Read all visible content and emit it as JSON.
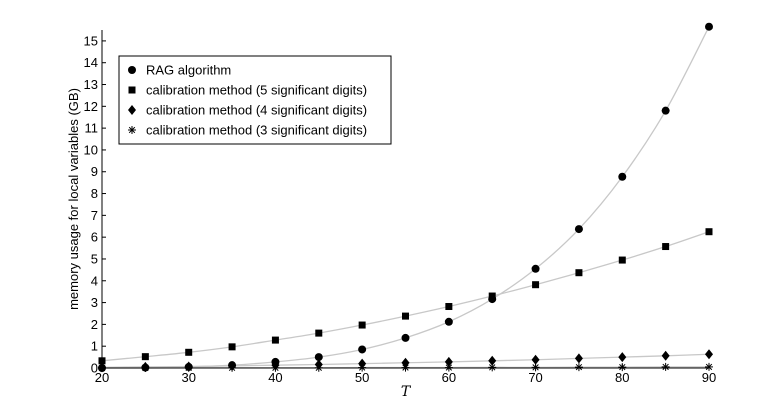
{
  "chart_data": {
    "type": "line",
    "xlabel": "T",
    "ylabel": "memory usage for local variables (GB)",
    "xlim": [
      20,
      90
    ],
    "ylim": [
      0,
      15.5
    ],
    "xticks": [
      "20",
      "30",
      "40",
      "50",
      "60",
      "70",
      "80",
      "90"
    ],
    "yticks": [
      "0",
      "1",
      "2",
      "3",
      "4",
      "5",
      "6",
      "7",
      "8",
      "9",
      "10",
      "11",
      "12",
      "13",
      "14",
      "15"
    ],
    "legend_position": "top-left",
    "grid": false,
    "x": [
      20,
      25,
      30,
      35,
      40,
      45,
      50,
      55,
      60,
      65,
      70,
      75,
      80,
      85,
      90
    ],
    "series": [
      {
        "name": "RAG algorithm",
        "marker": "circle",
        "values": [
          0.0,
          0.02,
          0.05,
          0.13,
          0.28,
          0.5,
          0.85,
          1.38,
          2.12,
          3.16,
          4.55,
          6.37,
          8.77,
          11.8,
          15.65
        ]
      },
      {
        "name": "calibration method (5 significant digits)",
        "marker": "square",
        "values": [
          0.33,
          0.52,
          0.72,
          0.97,
          1.28,
          1.6,
          1.97,
          2.38,
          2.82,
          3.3,
          3.82,
          4.37,
          4.95,
          5.57,
          6.25
        ]
      },
      {
        "name": "calibration method (4 significant digits)",
        "marker": "diamond",
        "values": [
          0.03,
          0.05,
          0.07,
          0.1,
          0.13,
          0.16,
          0.2,
          0.24,
          0.28,
          0.33,
          0.38,
          0.44,
          0.5,
          0.56,
          0.63
        ]
      },
      {
        "name": "calibration method (3 significant digits)",
        "marker": "star",
        "values": [
          0.0,
          0.0,
          0.01,
          0.01,
          0.01,
          0.01,
          0.02,
          0.02,
          0.02,
          0.03,
          0.03,
          0.04,
          0.04,
          0.05,
          0.05
        ]
      }
    ],
    "colors": {
      "markers": "#000000",
      "curves": "#c8c8c8",
      "axes": "#000000"
    }
  }
}
